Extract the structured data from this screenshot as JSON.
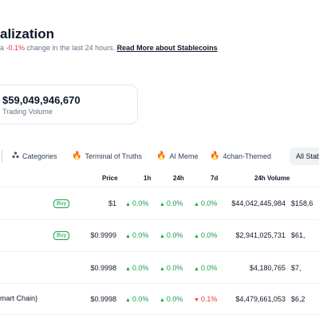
{
  "header": {
    "title": "alization",
    "subtitle_prefix": "a ",
    "subtitle_change": "-0.1%",
    "subtitle_mid": " change in the last 24 hours. ",
    "subtitle_link": "Read More about Stablecoins"
  },
  "stat_card": {
    "value": "$59,049,946,670",
    "label": "Trading Volume"
  },
  "tabs": [
    {
      "label": "Categories",
      "icon": "categories-icon"
    },
    {
      "label": "Terminal of Truths",
      "icon": "fire-icon"
    },
    {
      "label": "AI Meme",
      "icon": "fire-icon"
    },
    {
      "label": "4chan-Themed",
      "icon": "fire-icon"
    },
    {
      "label": "All Stab",
      "icon": null
    }
  ],
  "table": {
    "headers": [
      "Price",
      "1h",
      "24h",
      "7d",
      "24h Volume"
    ],
    "rows": [
      {
        "name": "",
        "buy": "Buy",
        "price": "$1",
        "h1": "0.0%",
        "h24": "0.0%",
        "d7": "0.0%",
        "d7_dir": "up",
        "volume": "$44,042,445,984",
        "mcap": "$158,6"
      },
      {
        "name": "",
        "buy": "Buy",
        "price": "$0.9999",
        "h1": "0.0%",
        "h24": "0.0%",
        "d7": "0.0%",
        "d7_dir": "up",
        "volume": "$2,941,025,731",
        "mcap": "$61,"
      },
      {
        "name": "",
        "buy": "",
        "price": "$0.9998",
        "h1": "0.0%",
        "h24": "0.0%",
        "d7": "0.0%",
        "d7_dir": "up",
        "volume": "$4,180,765",
        "mcap": "$7,"
      },
      {
        "name": "mart Chain)",
        "buy": "",
        "price": "$0.9998",
        "h1": "0.0%",
        "h24": "0.0%",
        "d7": "0.1%",
        "d7_dir": "down",
        "volume": "$4,479,661,053",
        "mcap": "$6,2"
      }
    ]
  },
  "colors": {
    "positive": "#16a34a",
    "negative": "#ea3943",
    "link": "#0f172a"
  }
}
